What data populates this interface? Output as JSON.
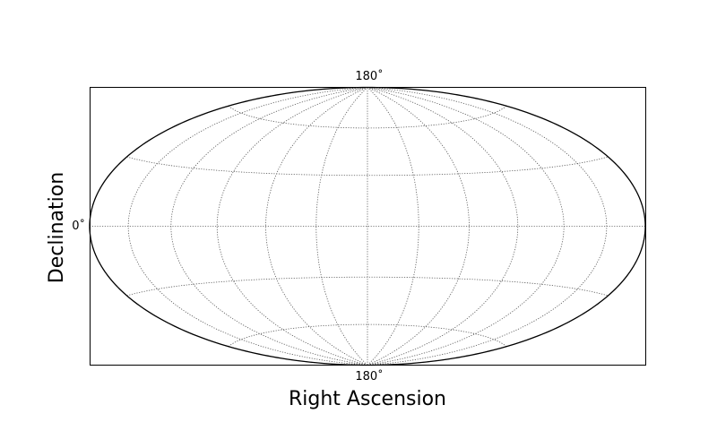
{
  "chart_data": {
    "type": "scatter",
    "projection": "hammer",
    "xlabel": "Right Ascension",
    "ylabel": "Declination",
    "center_longitude_deg": 180,
    "meridians_deg": [
      0,
      30,
      60,
      90,
      120,
      150,
      180,
      210,
      240,
      270,
      300,
      330,
      360
    ],
    "parallels_deg": [
      -60,
      -30,
      0,
      30,
      60
    ],
    "tick_labels": {
      "top": "180˚",
      "bottom": "180˚",
      "left": "0˚"
    },
    "grid": true,
    "series": []
  }
}
